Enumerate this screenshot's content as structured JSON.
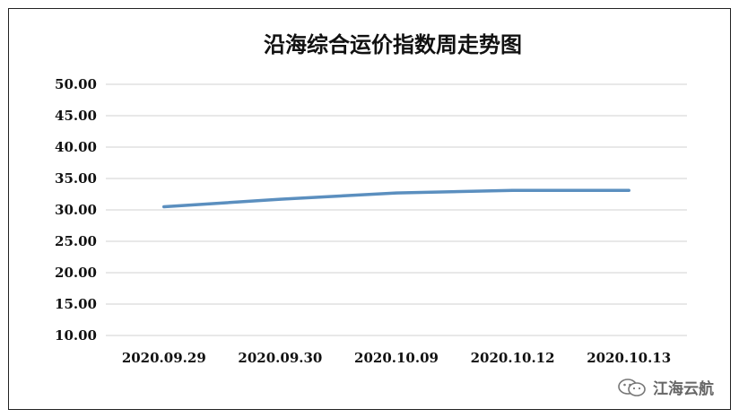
{
  "chart_data": {
    "type": "line",
    "title": "沿海综合运价指数周走势图",
    "categories": [
      "2020.09.29",
      "2020.09.30",
      "2020.10.09",
      "2020.10.12",
      "2020.10.13"
    ],
    "series": [
      {
        "values": [
          30.5,
          31.7,
          32.7,
          33.1,
          33.1
        ]
      }
    ],
    "ylim": [
      10,
      50
    ],
    "yticks": [
      "50.00",
      "45.00",
      "40.00",
      "35.00",
      "30.00",
      "25.00",
      "20.00",
      "15.00",
      "10.00"
    ],
    "grid": true,
    "line_color": "#5b8fbf"
  },
  "watermark": {
    "text": "江海云航",
    "icon": "wechat-icon"
  }
}
